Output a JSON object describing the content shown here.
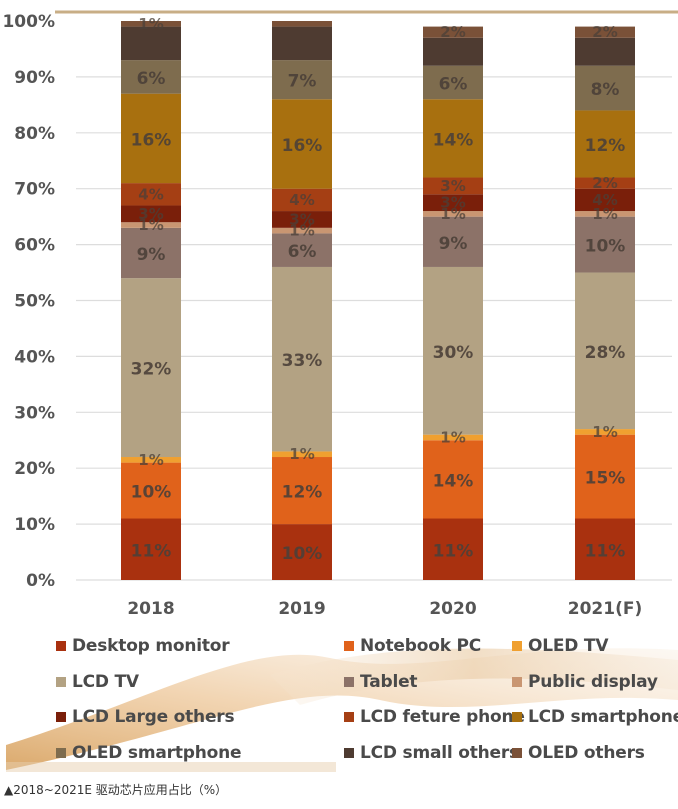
{
  "chart_data": {
    "type": "bar",
    "stacked": true,
    "percent": true,
    "title": "",
    "xlabel": "",
    "ylabel": "",
    "ylim": [
      0,
      100
    ],
    "yticks": [
      "0%",
      "10%",
      "20%",
      "30%",
      "40%",
      "50%",
      "60%",
      "70%",
      "80%",
      "90%",
      "100%"
    ],
    "grid": true,
    "legend_position": "bottom",
    "categories": [
      "2018",
      "2019",
      "2020",
      "2021(F)"
    ],
    "series": [
      {
        "name": "Desktop monitor",
        "color": "#A9310F",
        "values": [
          11,
          10,
          11,
          11
        ],
        "labels": [
          "11%",
          "10%",
          "11%",
          "11%"
        ]
      },
      {
        "name": "Notebook PC",
        "color": "#E0621B",
        "values": [
          10,
          12,
          14,
          15
        ],
        "labels": [
          "10%",
          "12%",
          "14%",
          "15%"
        ]
      },
      {
        "name": "OLED TV",
        "color": "#F0A030",
        "values": [
          1,
          1,
          1,
          1
        ],
        "labels": [
          "1%",
          "1%",
          "1%",
          "1%"
        ]
      },
      {
        "name": "LCD TV",
        "color": "#B3A283",
        "values": [
          32,
          33,
          30,
          28
        ],
        "labels": [
          "32%",
          "33%",
          "30%",
          "28%"
        ]
      },
      {
        "name": "Tablet",
        "color": "#8C7268",
        "values": [
          9,
          6,
          9,
          10
        ],
        "labels": [
          "9%",
          "6%",
          "9%",
          "10%"
        ]
      },
      {
        "name": "Public display",
        "color": "#C99672",
        "values": [
          1,
          1,
          1,
          1
        ],
        "labels": [
          "1%",
          "1%",
          "1%",
          "1%"
        ]
      },
      {
        "name": "LCD Large others",
        "color": "#7A1F0A",
        "values": [
          3,
          3,
          3,
          4
        ],
        "labels": [
          "3%",
          "3%",
          "3%",
          "4%"
        ]
      },
      {
        "name": "LCD feture phone",
        "color": "#A53F14",
        "values": [
          4,
          4,
          3,
          2
        ],
        "labels": [
          "4%",
          "4%",
          "3%",
          "2%"
        ]
      },
      {
        "name": "LCD smartphone",
        "color": "#A8700F",
        "values": [
          16,
          16,
          14,
          12
        ],
        "labels": [
          "16%",
          "16%",
          "14%",
          "12%"
        ]
      },
      {
        "name": "OLED smartphone",
        "color": "#7E6C4E",
        "values": [
          6,
          7,
          6,
          8
        ],
        "labels": [
          "6%",
          "7%",
          "6%",
          "8%"
        ]
      },
      {
        "name": "LCD small others",
        "color": "#4E3B31",
        "values": [
          6,
          6,
          5,
          5
        ],
        "labels": [
          "",
          "",
          "",
          ""
        ]
      },
      {
        "name": "OLED others",
        "color": "#7A5138",
        "values": [
          1,
          1,
          2,
          2
        ],
        "labels": [
          "1%",
          "",
          "2%",
          "2%"
        ]
      }
    ]
  },
  "caption": "▲2018~2021E 驱动芯片应用占比（%）"
}
